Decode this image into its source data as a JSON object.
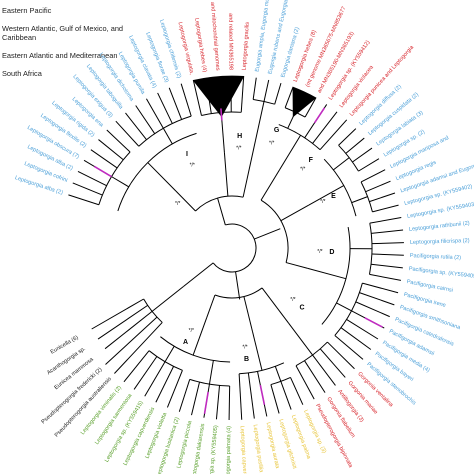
{
  "legend": [
    {
      "label": "Eastern Pacific",
      "color": "#4a9fd8"
    },
    {
      "label": "Western Atlantic, Gulf of Mexico, and Caribbean",
      "color": "#d8262d"
    },
    {
      "label": "Eastern Atlantic and Mediterranean",
      "color": "#5aa02c"
    },
    {
      "label": "South Africa",
      "color": "#e8c53a"
    }
  ],
  "clade_labels": [
    "A",
    "B",
    "C",
    "D",
    "E",
    "F",
    "G",
    "H",
    "I"
  ],
  "support_marks": [
    "*/*",
    "*/*",
    "*/*",
    "*/*",
    "*/*",
    "*/*",
    "*/*",
    "*/*",
    "*/*",
    "*/*"
  ],
  "tips": [
    {
      "text": "Leptogorgia alba (2)",
      "color": "#4a9fd8"
    },
    {
      "text": "Leptogorgia cofrini",
      "color": "#4a9fd8"
    },
    {
      "text": "Leptogorgia alba (2)",
      "color": "#4a9fd8"
    },
    {
      "text": "Leptogorgia obscura (7)",
      "color": "#4a9fd8"
    },
    {
      "text": "Leptogorgia flexilis (2)",
      "color": "#4a9fd8"
    },
    {
      "text": "Leptogorgia rigida (2)",
      "color": "#4a9fd8"
    },
    {
      "text": "Leptogorgia ena",
      "color": "#4a9fd8"
    },
    {
      "text": "Leptogorgia exigua (3)",
      "color": "#4a9fd8"
    },
    {
      "text": "Leptogorgia taboguilla",
      "color": "#4a9fd8"
    },
    {
      "text": "Leptogorgia dichotoma",
      "color": "#4a9fd8"
    },
    {
      "text": "Leptogorgia pumila",
      "color": "#4a9fd8"
    },
    {
      "text": "Leptogorgia clavata (4)",
      "color": "#4a9fd8"
    },
    {
      "text": "Leptogorgia florae (3)",
      "color": "#4a9fd8"
    },
    {
      "text": "Leptogorgia chilensis (2)",
      "color": "#4a9fd8"
    },
    {
      "text": "Leptogorgia virgulata,",
      "color": "#d8262d"
    },
    {
      "text": "Leptogorgia hebes (4)",
      "color": "#d8262d"
    },
    {
      "text": "and mitochondrial genomes",
      "color": "#d8262d"
    },
    {
      "text": "and related MN365198",
      "color": "#d8262d"
    },
    {
      "text": "Leptogorgia gracilis",
      "color": "#d8262d"
    },
    {
      "text": "Eugorgia ampla, Eugorgia mutans,",
      "color": "#4a9fd8"
    },
    {
      "text": "Eugorgia rubens and Eugorgia sp.",
      "color": "#4a9fd8"
    },
    {
      "text": "Eugorgia daniana (2)",
      "color": "#4a9fd8"
    },
    {
      "text": "Leptogorgia hebes (8)",
      "color": "#d8262d"
    },
    {
      "text": "(mt genome MN365675-MN853677",
      "color": "#d8262d"
    },
    {
      "text": "and MN365190-MN365193)",
      "color": "#d8262d"
    },
    {
      "text": "Leptogorgia sp. (KY559412)",
      "color": "#d8262d"
    },
    {
      "text": "Leptogorgia violacea",
      "color": "#d8262d"
    },
    {
      "text": "Leptogorgia punicea and Leptogorgia",
      "color": "#d8262d"
    },
    {
      "text": "Leptogorgia diffusa (2)",
      "color": "#4a9fd8"
    },
    {
      "text": "Leptogorgia cuspidata (2)",
      "color": "#4a9fd8"
    },
    {
      "text": "Leptogorgia labiata (3)",
      "color": "#4a9fd8"
    },
    {
      "text": "Leptogorgia sp. (2)",
      "color": "#4a9fd8"
    },
    {
      "text": "Leptogorgia mariposa and",
      "color": "#4a9fd8"
    },
    {
      "text": "Leptogorgia regis",
      "color": "#4a9fd8"
    },
    {
      "text": "Leptogorgia adamsi and Eugorgia multifida",
      "color": "#4a9fd8"
    },
    {
      "text": "Leptogorgia sp. (KY559402)",
      "color": "#4a9fd8"
    },
    {
      "text": "Leptogorgia sp. (KY559403)",
      "color": "#4a9fd8"
    },
    {
      "text": "Leptogorgia rathbunii (2)",
      "color": "#4a9fd8"
    },
    {
      "text": "Leptogorgia filicrispa (2)",
      "color": "#4a9fd8"
    },
    {
      "text": "Pacifigorgia rutila (2)",
      "color": "#4a9fd8"
    },
    {
      "text": "Pacifigorgia sp. (KY559405)",
      "color": "#4a9fd8"
    },
    {
      "text": "Pacifigorgia cairnsi",
      "color": "#4a9fd8"
    },
    {
      "text": "Pacifigorgia irene",
      "color": "#4a9fd8"
    },
    {
      "text": "Pacifigorgia smithsoniana",
      "color": "#4a9fd8"
    },
    {
      "text": "Pacifigorgia catedralensis",
      "color": "#4a9fd8"
    },
    {
      "text": "Pacifigorgia adamsii",
      "color": "#4a9fd8"
    },
    {
      "text": "Pacifigorgia media (4)",
      "color": "#4a9fd8"
    },
    {
      "text": "Pacifigorgia bayeri",
      "color": "#4a9fd8"
    },
    {
      "text": "Pacifigorgia stenobrochis",
      "color": "#4a9fd8"
    },
    {
      "text": "Gorgonia ventalina",
      "color": "#d8262d"
    },
    {
      "text": "Gorgonia mariae",
      "color": "#d8262d"
    },
    {
      "text": "Antillogorgia (3)",
      "color": "#d8262d"
    },
    {
      "text": "Gorgonia flabellum",
      "color": "#d8262d"
    },
    {
      "text": "Pseudopterogorgia bipinnata",
      "color": "#d8262d"
    },
    {
      "text": "Leptogorgia sp. (3)",
      "color": "#e8c53a"
    },
    {
      "text": "Leptogorgia palma",
      "color": "#e8c53a"
    },
    {
      "text": "Leptogorgia gilchristi",
      "color": "#e8c53a"
    },
    {
      "text": "Leptogorgia aurata",
      "color": "#e8c53a"
    },
    {
      "text": "Leptogorgia pusillia",
      "color": "#e8c53a"
    },
    {
      "text": "Leptogorgia capverdensis",
      "color": "#e8c53a"
    },
    {
      "text": "Leptogorgia palmata (4)",
      "color": "#5aa02c"
    },
    {
      "text": "Leptogorgia sp. (KY559405)",
      "color": "#5aa02c"
    },
    {
      "text": "and Leptogorgia dakarensis",
      "color": "#5aa02c"
    },
    {
      "text": "Leptogorgia piccola",
      "color": "#5aa02c"
    },
    {
      "text": "Leptogorgia lusitanica (2)",
      "color": "#5aa02c"
    },
    {
      "text": "Leptogorgia violetta",
      "color": "#5aa02c"
    },
    {
      "text": "Leptogorgia capverdensis",
      "color": "#5aa02c"
    },
    {
      "text": "Leptogorgia sp. (KY559415)",
      "color": "#5aa02c"
    },
    {
      "text": "Leptogorgia sarmentosa",
      "color": "#5aa02c"
    },
    {
      "text": "Leptogorgia viminalis (2)",
      "color": "#5aa02c"
    },
    {
      "text": "Pseudopterogorgia australiensis",
      "color": "#222222"
    },
    {
      "text": "Pseudopterogorgia fredericki (2)",
      "color": "#222222"
    },
    {
      "text": "Eunicea mammosa",
      "color": "#222222"
    },
    {
      "text": "Acanthogorgia sp.",
      "color": "#222222"
    },
    {
      "text": "Eunicella (6)",
      "color": "#222222"
    }
  ],
  "colors": {
    "eastern_pacific": "#4a9fd8",
    "western_atlantic": "#d8262d",
    "eastern_atlantic": "#5aa02c",
    "south_africa": "#e8c53a",
    "highlight_branch": "#c02bc0",
    "tree": "#000000"
  }
}
